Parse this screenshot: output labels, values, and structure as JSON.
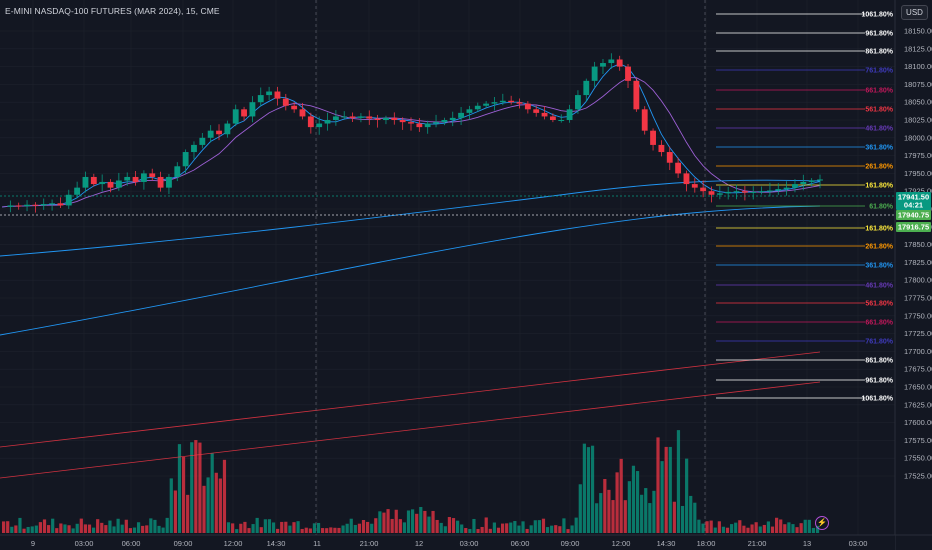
{
  "header": {
    "title": "E-MINI NASDAQ-100 FUTURES (MAR 2024), 15, CME",
    "currency_button": "USD"
  },
  "price_axis": {
    "labels": [
      "18150.00",
      "18125.00",
      "18100.00",
      "18075.00",
      "18050.00",
      "18025.00",
      "18000.00",
      "17975.00",
      "17950.00",
      "17925.00",
      "17900.00",
      "17875.00",
      "17850.00",
      "17825.00",
      "17800.00",
      "17775.00",
      "17750.00",
      "17725.00",
      "17700.00",
      "17675.00",
      "17650.00",
      "17625.00",
      "17600.00",
      "17575.00",
      "17550.00",
      "17525.00"
    ],
    "tags": [
      {
        "text": "17941.50",
        "color": "#089981"
      },
      {
        "text": "04:21",
        "color": "#089981"
      },
      {
        "text": "17940.75",
        "color": "#4caf50"
      },
      {
        "text": "17916.75",
        "color": "#4caf50"
      }
    ]
  },
  "time_axis": {
    "labels": [
      "9",
      "03:00",
      "06:00",
      "09:00",
      "12:00",
      "14:30",
      "11",
      "21:00",
      "12",
      "03:00",
      "06:00",
      "09:00",
      "12:00",
      "14:30",
      "18:00",
      "21:00",
      "13",
      "03:00"
    ]
  },
  "fib_levels": [
    {
      "label": "1061.80%",
      "color": "#ffffff"
    },
    {
      "label": "961.80%",
      "color": "#ffffff"
    },
    {
      "label": "861.80%",
      "color": "#ffffff"
    },
    {
      "label": "761.80%",
      "color": "#3f3bbd"
    },
    {
      "label": "661.80%",
      "color": "#c2185b"
    },
    {
      "label": "561.80%",
      "color": "#f23645"
    },
    {
      "label": "461.80%",
      "color": "#673ab7"
    },
    {
      "label": "361.80%",
      "color": "#2196f3"
    },
    {
      "label": "261.80%",
      "color": "#ff9800"
    },
    {
      "label": "161.80%",
      "color": "#ffeb3b"
    },
    {
      "label": "61.80%",
      "color": "#4caf50"
    },
    {
      "label": "161.80%",
      "color": "#ffeb3b"
    },
    {
      "label": "261.80%",
      "color": "#ff9800"
    },
    {
      "label": "361.80%",
      "color": "#2196f3"
    },
    {
      "label": "461.80%",
      "color": "#673ab7"
    },
    {
      "label": "561.80%",
      "color": "#f23645"
    },
    {
      "label": "661.80%",
      "color": "#c2185b"
    },
    {
      "label": "761.80%",
      "color": "#3f3bbd"
    },
    {
      "label": "861.80%",
      "color": "#ffffff"
    },
    {
      "label": "961.80%",
      "color": "#ffffff"
    },
    {
      "label": "1061.80%",
      "color": "#ffffff"
    }
  ],
  "colors": {
    "background": "#131722",
    "up": "#089981",
    "down": "#f23645",
    "ma_fast": "#2196f3",
    "ma_slow": "#9c5fd4",
    "grid": "#1e222d"
  },
  "chart_data": {
    "type": "candlestick",
    "interval": "15m",
    "ylim": [
      17515,
      18165
    ],
    "close_path": [
      17903,
      17905,
      17904,
      17906,
      17905,
      17907,
      17908,
      17905,
      17920,
      17930,
      17945,
      17935,
      17938,
      17930,
      17940,
      17945,
      17938,
      17950,
      17945,
      17930,
      17945,
      17960,
      17980,
      17990,
      18000,
      18010,
      18005,
      18020,
      18040,
      18030,
      18050,
      18060,
      18065,
      18055,
      18045,
      18040,
      18030,
      18015,
      18020,
      18025,
      18030,
      18030,
      18028,
      18030,
      18027,
      18025,
      18028,
      18025,
      18022,
      18020,
      18015,
      18020,
      18022,
      18025,
      18028,
      18035,
      18040,
      18045,
      18048,
      18050,
      18052,
      18050,
      18048,
      18040,
      18035,
      18030,
      18025,
      18025,
      18040,
      18060,
      18080,
      18100,
      18105,
      18110,
      18100,
      18080,
      18040,
      18010,
      17990,
      17980,
      17965,
      17950,
      17935,
      17930,
      17925,
      17920,
      17922,
      17924,
      17925,
      17923,
      17924,
      17925,
      17926,
      17928,
      17930,
      17935,
      17938,
      17940,
      17941.5
    ],
    "volume_ylim": [
      0,
      180
    ],
    "last_price": 17941.5,
    "countdown": "04:21"
  }
}
